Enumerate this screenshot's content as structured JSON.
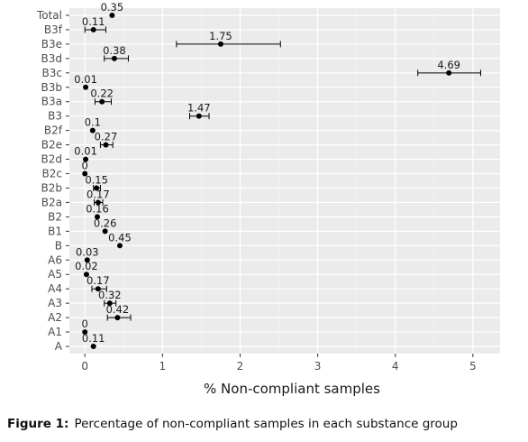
{
  "chart_data": {
    "type": "scatter",
    "xlabel": "% Non-compliant samples",
    "xlim": [
      -0.2,
      5.35
    ],
    "x_ticks": [
      0,
      1,
      2,
      3,
      4,
      5
    ],
    "grid": true,
    "background": "#ebebeb",
    "point_color": "#000000",
    "categories": [
      "Total",
      "B3f",
      "B3e",
      "B3d",
      "B3c",
      "B3b",
      "B3a",
      "B3",
      "B2f",
      "B2e",
      "B2d",
      "B2c",
      "B2b",
      "B2a",
      "B2",
      "B1",
      "B",
      "A6",
      "A5",
      "A4",
      "A3",
      "A2",
      "A1",
      "A"
    ],
    "points": [
      {
        "category": "Total",
        "value": 0.35,
        "label": "0.35",
        "err": null
      },
      {
        "category": "B3f",
        "value": 0.11,
        "label": "0.11",
        "err": [
          0.0,
          0.27
        ]
      },
      {
        "category": "B3e",
        "value": 1.75,
        "label": "1.75",
        "err": [
          1.18,
          2.52
        ]
      },
      {
        "category": "B3d",
        "value": 0.38,
        "label": "0.38",
        "err": [
          0.25,
          0.56
        ]
      },
      {
        "category": "B3c",
        "value": 4.69,
        "label": "4.69",
        "err": [
          4.29,
          5.1
        ]
      },
      {
        "category": "B3b",
        "value": 0.01,
        "label": "0.01",
        "err": null
      },
      {
        "category": "B3a",
        "value": 0.22,
        "label": "0.22",
        "err": [
          0.13,
          0.34
        ]
      },
      {
        "category": "B3",
        "value": 1.47,
        "label": "1.47",
        "err": [
          1.35,
          1.6
        ]
      },
      {
        "category": "B2f",
        "value": 0.1,
        "label": "0.1",
        "err": null
      },
      {
        "category": "B2e",
        "value": 0.27,
        "label": "0.27",
        "err": [
          0.2,
          0.36
        ]
      },
      {
        "category": "B2d",
        "value": 0.01,
        "label": "0.01",
        "err": null
      },
      {
        "category": "B2c",
        "value": 0,
        "label": "0",
        "err": null
      },
      {
        "category": "B2b",
        "value": 0.15,
        "label": "0.15",
        "err": [
          0.11,
          0.2
        ]
      },
      {
        "category": "B2a",
        "value": 0.17,
        "label": "0.17",
        "err": [
          0.12,
          0.23
        ]
      },
      {
        "category": "B2",
        "value": 0.16,
        "label": "0.16",
        "err": null
      },
      {
        "category": "B1",
        "value": 0.26,
        "label": "0.26",
        "err": null
      },
      {
        "category": "B",
        "value": 0.45,
        "label": "0.45",
        "err": null
      },
      {
        "category": "A6",
        "value": 0.03,
        "label": "0.03",
        "err": null
      },
      {
        "category": "A5",
        "value": 0.02,
        "label": "0.02",
        "err": null
      },
      {
        "category": "A4",
        "value": 0.17,
        "label": "0.17",
        "err": [
          0.09,
          0.28
        ]
      },
      {
        "category": "A3",
        "value": 0.32,
        "label": "0.32",
        "err": [
          0.25,
          0.4
        ]
      },
      {
        "category": "A2",
        "value": 0.42,
        "label": "0.42",
        "err": [
          0.29,
          0.59
        ]
      },
      {
        "category": "A1",
        "value": 0,
        "label": "0",
        "err": null
      },
      {
        "category": "A",
        "value": 0.11,
        "label": "0.11",
        "err": null
      }
    ]
  },
  "caption": {
    "prefix": "Figure 1:",
    "text": "Percentage of non-compliant samples in each substance group"
  }
}
